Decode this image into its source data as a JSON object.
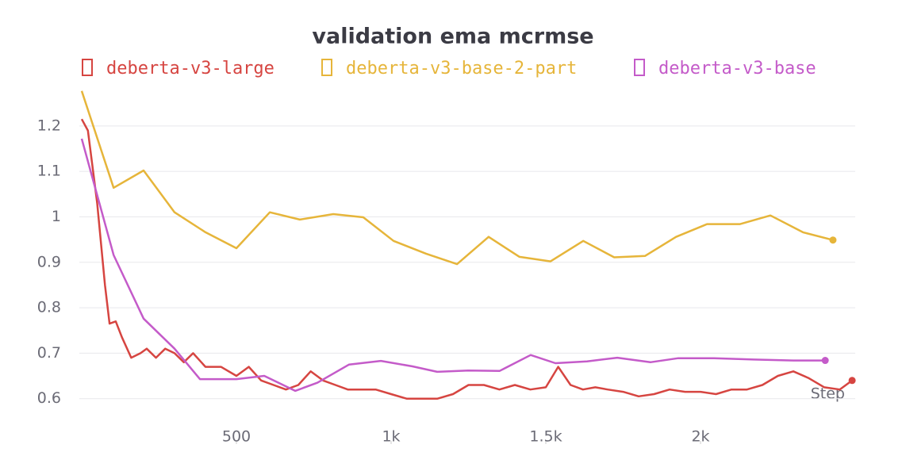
{
  "chart_data": {
    "type": "line",
    "title": "validation ema mcrmse",
    "x_label": "Step",
    "xlim": [
      0,
      2500
    ],
    "ylim": [
      0.5,
      1.28
    ],
    "xticks": [
      500,
      {
        "value": 1000,
        "label": "1k"
      },
      {
        "value": 1500,
        "label": "1.5k"
      },
      {
        "value": 2000,
        "label": "2k"
      }
    ],
    "yticks": [
      0.6,
      0.7,
      0.8,
      0.9,
      1,
      1.1,
      1.2
    ],
    "grid": true,
    "series": [
      {
        "name": "deberta-v3-large",
        "color": "#d64541",
        "x": [
          0,
          20,
          50,
          75,
          90,
          110,
          130,
          160,
          190,
          210,
          240,
          270,
          300,
          330,
          360,
          400,
          450,
          500,
          540,
          580,
          620,
          660,
          700,
          740,
          780,
          820,
          860,
          900,
          950,
          1000,
          1050,
          1100,
          1150,
          1200,
          1250,
          1300,
          1350,
          1400,
          1450,
          1500,
          1540,
          1580,
          1620,
          1660,
          1700,
          1750,
          1800,
          1850,
          1900,
          1950,
          2000,
          2050,
          2100,
          2150,
          2200,
          2250,
          2300,
          2350,
          2400,
          2450,
          2490
        ],
        "values": [
          1.215,
          1.19,
          1.03,
          0.85,
          0.765,
          0.77,
          0.735,
          0.69,
          0.7,
          0.71,
          0.69,
          0.71,
          0.7,
          0.68,
          0.7,
          0.67,
          0.67,
          0.65,
          0.67,
          0.64,
          0.63,
          0.62,
          0.63,
          0.66,
          0.64,
          0.63,
          0.62,
          0.62,
          0.62,
          0.61,
          0.6,
          0.6,
          0.6,
          0.61,
          0.63,
          0.63,
          0.62,
          0.63,
          0.62,
          0.625,
          0.67,
          0.63,
          0.62,
          0.625,
          0.62,
          0.615,
          0.605,
          0.61,
          0.62,
          0.615,
          0.615,
          0.61,
          0.62,
          0.62,
          0.63,
          0.65,
          0.66,
          0.645,
          0.625,
          0.62,
          0.64
        ]
      },
      {
        "name": "deberta-v3-base-2-part",
        "color": "#e6b53a",
        "x": [
          0,
          103,
          200,
          300,
          400,
          500,
          608,
          705,
          813,
          910,
          1008,
          1113,
          1213,
          1315,
          1415,
          1515,
          1621,
          1721,
          1821,
          1921,
          2021,
          2128,
          2226,
          2331,
          2428
        ],
        "values": [
          1.277,
          1.064,
          1.102,
          1.01,
          0.966,
          0.931,
          1.01,
          0.994,
          1.006,
          0.999,
          0.947,
          0.919,
          0.896,
          0.956,
          0.912,
          0.902,
          0.947,
          0.911,
          0.914,
          0.956,
          0.984,
          0.984,
          1.003,
          0.966,
          0.949
        ]
      },
      {
        "name": "deberta-v3-base",
        "color": "#c45bc9",
        "x": [
          0,
          103,
          200,
          300,
          382,
          500,
          590,
          690,
          762,
          864,
          967,
          1069,
          1149,
          1249,
          1351,
          1451,
          1531,
          1633,
          1731,
          1838,
          1928,
          2044,
          2172,
          2300,
          2403
        ],
        "values": [
          1.172,
          0.916,
          0.776,
          0.71,
          0.643,
          0.643,
          0.65,
          0.617,
          0.635,
          0.675,
          0.683,
          0.671,
          0.659,
          0.662,
          0.661,
          0.696,
          0.678,
          0.682,
          0.69,
          0.68,
          0.689,
          0.689,
          0.686,
          0.684,
          0.684
        ]
      }
    ]
  }
}
